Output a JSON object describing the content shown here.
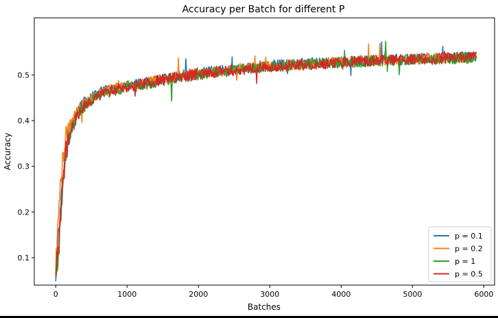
{
  "chart_data": {
    "type": "line",
    "title": "Accuracy per Batch for different P",
    "xlabel": "Batches",
    "ylabel": "Accuracy",
    "xlim": [
      -300,
      6150
    ],
    "ylim": [
      0.04,
      0.625
    ],
    "xticks": [
      0,
      1000,
      2000,
      3000,
      4000,
      5000,
      6000
    ],
    "xtick_labels": [
      "0",
      "1000",
      "2000",
      "3000",
      "4000",
      "5000",
      "6000"
    ],
    "yticks": [
      0.1,
      0.2,
      0.3,
      0.4,
      0.5
    ],
    "ytick_labels": [
      "0.1",
      "0.2",
      "0.3",
      "0.4",
      "0.5"
    ],
    "grid": false,
    "legend_position": "lower-right",
    "noise_amplitude": 0.012,
    "series": [
      {
        "name": "p = 0.1",
        "color": "#1f77b4",
        "x": [
          0,
          50,
          100,
          150,
          200,
          300,
          400,
          600,
          800,
          1000,
          1500,
          2000,
          2500,
          3000,
          3500,
          4000,
          4500,
          5000,
          5500,
          5900
        ],
        "y": [
          0.06,
          0.17,
          0.29,
          0.35,
          0.38,
          0.42,
          0.44,
          0.46,
          0.47,
          0.475,
          0.49,
          0.505,
          0.512,
          0.52,
          0.525,
          0.528,
          0.532,
          0.535,
          0.538,
          0.54
        ]
      },
      {
        "name": "p = 0.2",
        "color": "#ff7f0e",
        "x": [
          0,
          50,
          100,
          150,
          200,
          300,
          400,
          600,
          800,
          1000,
          1500,
          2000,
          2500,
          3000,
          3500,
          4000,
          4500,
          5000,
          5500,
          5900
        ],
        "y": [
          0.07,
          0.24,
          0.32,
          0.37,
          0.39,
          0.42,
          0.44,
          0.46,
          0.47,
          0.475,
          0.49,
          0.505,
          0.512,
          0.52,
          0.523,
          0.528,
          0.532,
          0.535,
          0.537,
          0.54
        ]
      },
      {
        "name": "p = 1",
        "color": "#2ca02c",
        "x": [
          0,
          50,
          100,
          150,
          200,
          300,
          400,
          600,
          800,
          1000,
          1500,
          2000,
          2500,
          3000,
          3500,
          4000,
          4500,
          5000,
          5500,
          5900
        ],
        "y": [
          0.07,
          0.12,
          0.28,
          0.34,
          0.37,
          0.41,
          0.43,
          0.455,
          0.465,
          0.47,
          0.488,
          0.5,
          0.51,
          0.518,
          0.523,
          0.527,
          0.53,
          0.533,
          0.536,
          0.538
        ]
      },
      {
        "name": "p = 0.5",
        "color": "#d62728",
        "x": [
          0,
          50,
          100,
          150,
          200,
          300,
          400,
          600,
          800,
          1000,
          1500,
          2000,
          2500,
          3000,
          3500,
          4000,
          4500,
          5000,
          5500,
          5900
        ],
        "y": [
          0.06,
          0.14,
          0.27,
          0.34,
          0.37,
          0.41,
          0.435,
          0.455,
          0.467,
          0.472,
          0.49,
          0.502,
          0.51,
          0.518,
          0.523,
          0.527,
          0.531,
          0.534,
          0.537,
          0.539
        ]
      }
    ]
  }
}
